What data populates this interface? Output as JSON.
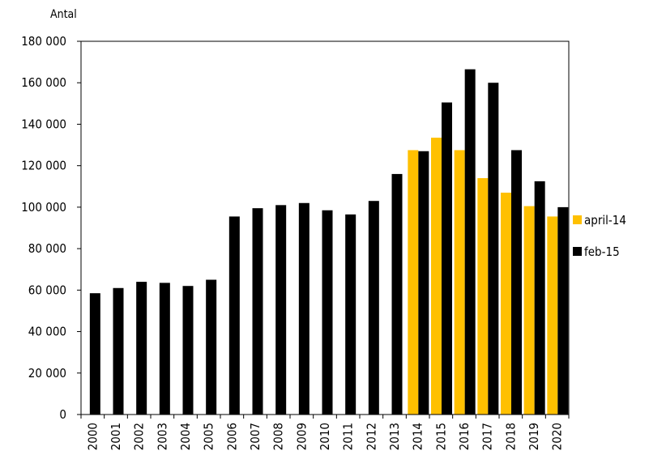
{
  "chart_data": {
    "type": "bar",
    "ylabel": "Antal",
    "ylim": [
      0,
      180000
    ],
    "ytick_step": 20000,
    "ytick_labels": [
      "0",
      "20 000",
      "40 000",
      "60 000",
      "80 000",
      "100 000",
      "120 000",
      "140 000",
      "160 000",
      "180 000"
    ],
    "grid": false,
    "legend_position": "right",
    "categories": [
      "2000",
      "2001",
      "2002",
      "2003",
      "2004",
      "2005",
      "2006",
      "2007",
      "2008",
      "2009",
      "2010",
      "2011",
      "2012",
      "2013",
      "2014",
      "2015",
      "2016",
      "2017",
      "2018",
      "2019",
      "2020"
    ],
    "series": [
      {
        "name": "april-14",
        "color": "#FFC000",
        "values": [
          null,
          null,
          null,
          null,
          null,
          null,
          null,
          null,
          null,
          null,
          null,
          null,
          null,
          null,
          127500,
          133500,
          127500,
          114000,
          107000,
          100500,
          95500
        ]
      },
      {
        "name": "feb-15",
        "color": "#000000",
        "values": [
          58500,
          61000,
          64000,
          63500,
          62000,
          65000,
          95500,
          99500,
          101000,
          102000,
          98500,
          96500,
          103000,
          116000,
          127000,
          150500,
          166500,
          160000,
          127500,
          112500,
          100000
        ]
      }
    ]
  }
}
